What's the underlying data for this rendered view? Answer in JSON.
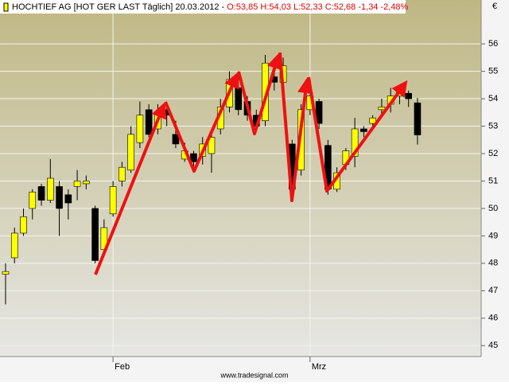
{
  "chart_data": {
    "type": "candlestick",
    "title": "HOCHTIEF AG [HOT GER LAST Täglich] 20.03.2012 -",
    "quote": "O:53,85 H:54,03 L:52,33 C:52,68 -1,34 -2,48%",
    "currency": "€",
    "footer": "www.tradesignal.com",
    "categories": [
      null,
      null,
      null,
      null,
      null,
      null,
      null,
      null,
      null,
      null,
      null,
      null,
      "Feb",
      null,
      null,
      null,
      null,
      null,
      null,
      null,
      null,
      null,
      null,
      null,
      null,
      null,
      null,
      null,
      null,
      null,
      null,
      null,
      null,
      null,
      "Mrz",
      null,
      null,
      null,
      null,
      null,
      null,
      null,
      null,
      null,
      null,
      null,
      null
    ],
    "open": [
      47.6,
      48.2,
      49.1,
      50.0,
      50.8,
      50.3,
      50.8,
      50.5,
      50.8,
      50.9,
      50.0,
      48.5,
      49.8,
      51.0,
      51.4,
      52.4,
      53.6,
      52.9,
      53.6,
      52.7,
      51.8,
      52.0,
      51.9,
      52.0,
      52.9,
      53.7,
      54.4,
      53.9,
      53.4,
      53.2,
      54.8,
      54.6,
      52.35,
      51.4,
      53.6,
      53.9,
      52.3,
      50.7,
      51.6,
      51.9,
      52.9,
      53.1,
      53.6,
      53.8,
      54.1,
      54.2,
      53.85
    ],
    "high": [
      48.0,
      49.3,
      50.0,
      50.7,
      50.9,
      51.8,
      51.0,
      50.7,
      51.4,
      51.2,
      50.1,
      49.6,
      51.0,
      51.7,
      53.0,
      53.9,
      53.8,
      53.8,
      53.7,
      53.2,
      52.4,
      52.1,
      52.6,
      52.7,
      54.0,
      55.0,
      55.0,
      54.1,
      53.6,
      55.6,
      55.0,
      55.5,
      52.5,
      53.8,
      54.2,
      54.0,
      52.5,
      51.5,
      52.2,
      53.3,
      53.0,
      53.4,
      54.0,
      54.4,
      54.4,
      54.3,
      54.03
    ],
    "low": [
      46.5,
      48.0,
      49.0,
      49.6,
      50.1,
      50.2,
      49.0,
      49.6,
      50.3,
      50.7,
      48.0,
      48.4,
      49.7,
      50.8,
      51.3,
      52.2,
      52.6,
      52.7,
      53.0,
      52.2,
      51.7,
      51.5,
      51.6,
      51.3,
      52.7,
      53.5,
      53.4,
      53.2,
      52.8,
      53.0,
      54.3,
      54.4,
      50.4,
      51.2,
      53.4,
      52.9,
      50.5,
      50.6,
      51.4,
      51.5,
      52.6,
      52.9,
      53.4,
      53.5,
      53.8,
      53.7,
      52.33
    ],
    "close": [
      47.7,
      49.1,
      49.7,
      50.6,
      50.3,
      51.1,
      50.0,
      50.2,
      51.0,
      51.0,
      48.1,
      49.3,
      50.8,
      51.5,
      52.7,
      53.4,
      52.7,
      53.5,
      53.4,
      52.35,
      52.1,
      51.7,
      52.35,
      52.6,
      53.7,
      54.7,
      53.6,
      53.4,
      53.0,
      55.3,
      54.6,
      55.2,
      50.7,
      53.6,
      54.1,
      53.1,
      50.7,
      51.3,
      52.1,
      52.9,
      52.8,
      53.3,
      53.7,
      54.1,
      54.3,
      54.0,
      52.68
    ],
    "up_color": "#ffff00",
    "down_color": "#000000",
    "ylim": [
      44.6,
      57.6
    ],
    "yticks": [
      45,
      46,
      47,
      48,
      49,
      50,
      51,
      52,
      53,
      54,
      55,
      56
    ],
    "grid": true
  }
}
